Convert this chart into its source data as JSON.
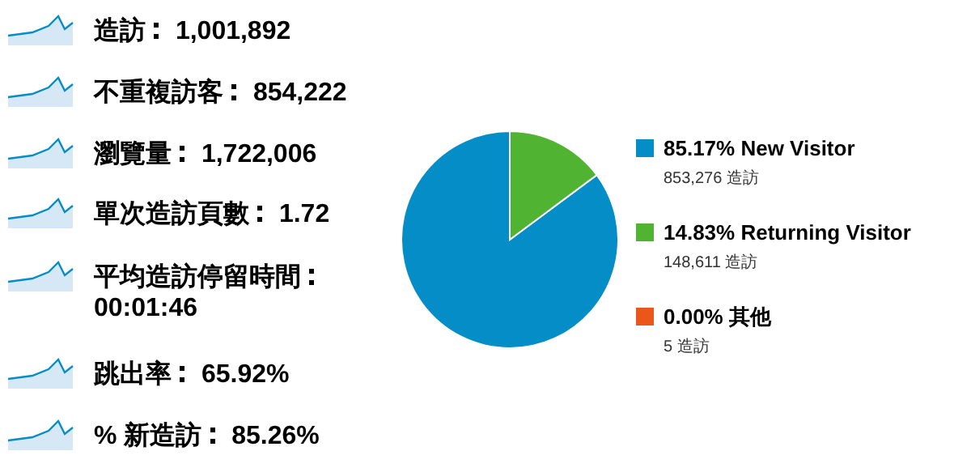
{
  "chart_data": [
    {
      "type": "other",
      "categories": [
        "造訪",
        "不重複訪客",
        "瀏覽量",
        "單次造訪頁數",
        "平均造訪停留時間",
        "跳出率",
        "% 新造訪"
      ],
      "value_labels": [
        "1,001,892",
        "854,222",
        "1,722,006",
        "1.72",
        "00:01:46",
        "65.92%",
        "85.26%"
      ]
    },
    {
      "type": "pie",
      "categories": [
        "New Visitor",
        "Returning Visitor",
        "其他"
      ],
      "values": [
        85.17,
        14.83,
        0.0
      ],
      "colors": [
        "#058dc7",
        "#50b432",
        "#ed561b"
      ],
      "value_labels": [
        "85.17%",
        "14.83%",
        "0.00%"
      ],
      "annotations": [
        "853,276 造訪",
        "148,611 造訪",
        "5 造訪"
      ],
      "legend": "right"
    }
  ]
}
